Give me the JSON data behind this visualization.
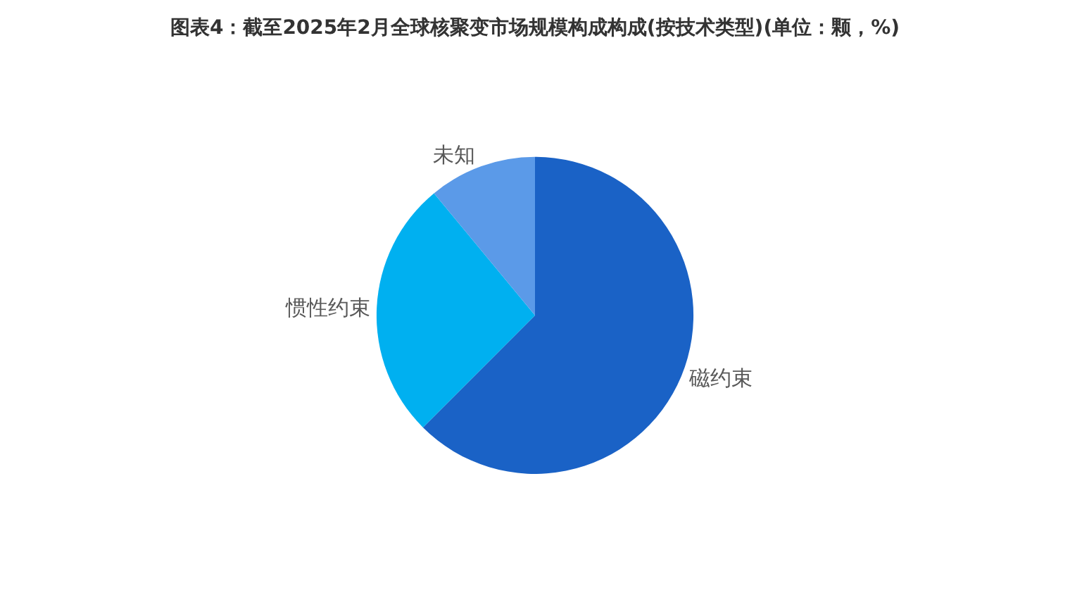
{
  "chart_data": {
    "type": "pie",
    "title": "图表4：截至2025年2月全球核聚变市场规模构成构成(按技术类型)(单位：颗，%)",
    "categories": [
      "磁约束",
      "惯性约束",
      "未知"
    ],
    "values": [
      62.5,
      26.5,
      11
    ],
    "colors": [
      "#1a62c6",
      "#00b0f0",
      "#5b9ae8"
    ],
    "legend": false
  }
}
